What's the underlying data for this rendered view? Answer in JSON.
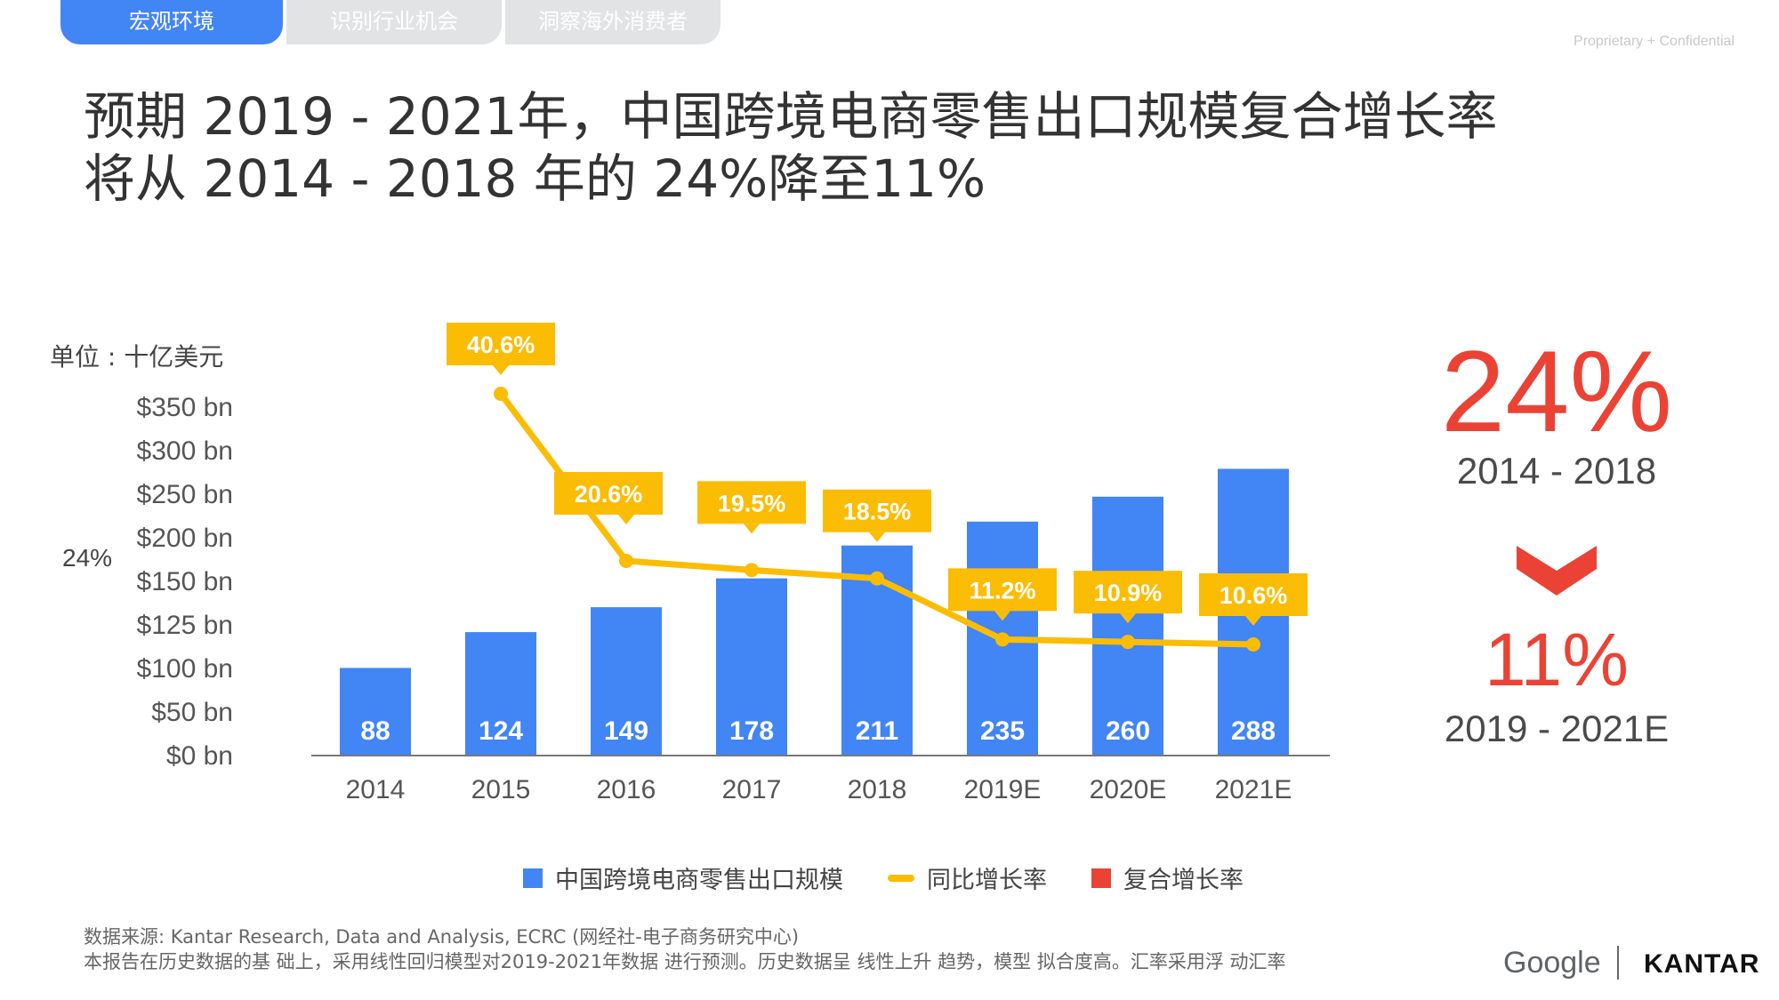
{
  "tabs": [
    {
      "label": "宏观环境",
      "active": true
    },
    {
      "label": "识别行业机会",
      "active": false
    },
    {
      "label": "洞察海外消费者",
      "active": false
    }
  ],
  "confidential": "Proprietary + Confidential",
  "title": {
    "line1": "预期 2019 - 2021年，中国跨境电商零售出口规模复合增长率",
    "line2": "将从 2014 - 2018 年的 24%降至11%"
  },
  "chart_data": {
    "type": "bar",
    "unit_label": "单位 : 十亿美元",
    "side_label": "24%",
    "categories": [
      "2014",
      "2015",
      "2016",
      "2017",
      "2018",
      "2019E",
      "2020E",
      "2021E"
    ],
    "series": [
      {
        "name": "中国跨境电商零售出口规模",
        "type": "bar",
        "values": [
          88,
          124,
          149,
          178,
          211,
          235,
          260,
          288
        ]
      },
      {
        "name": "同比增长率",
        "type": "line",
        "values": [
          null,
          40.6,
          20.6,
          19.5,
          18.5,
          11.2,
          10.9,
          10.6
        ],
        "labels": [
          "",
          "40.6%",
          "20.6%",
          "19.5%",
          "18.5%",
          "11.2%",
          "10.9%",
          "10.6%"
        ]
      }
    ],
    "y_tick_labels": [
      "$0 bn",
      "$50 bn",
      "$100 bn",
      "$125 bn",
      "$150 bn",
      "$200 bn",
      "$250 bn",
      "$300 bn",
      "$350 bn"
    ],
    "ylim": [
      0,
      350
    ],
    "grid": false,
    "legend_position": "bottom",
    "legend": [
      {
        "label": "中国跨境电商零售出口规模",
        "marker": "bar"
      },
      {
        "label": "同比增长率",
        "marker": "line"
      },
      {
        "label": "复合增长率",
        "marker": "square"
      }
    ],
    "colors": {
      "bar": "#4285f4",
      "line": "#fbbc04",
      "cagr": "#ea4335"
    }
  },
  "summary": {
    "cagr1": "24%",
    "period1": "2014 - 2018",
    "cagr2": "11%",
    "period2": "2019 - 2021E",
    "arrow_icon": "chevron-down-icon"
  },
  "source": {
    "line1": "数据来源: Kantar Research, Data and Analysis, ECRC (网经社-电子商务研究中心)",
    "line2": "本报告在历史数据的基 础上，采用线性回归模型对2019-2021年数据 进行预测。历史数据呈 线性上升 趋势，模型 拟合度高。汇率采用浮 动汇率"
  },
  "logos": {
    "google": "Google",
    "kantar": "KANTAR"
  }
}
